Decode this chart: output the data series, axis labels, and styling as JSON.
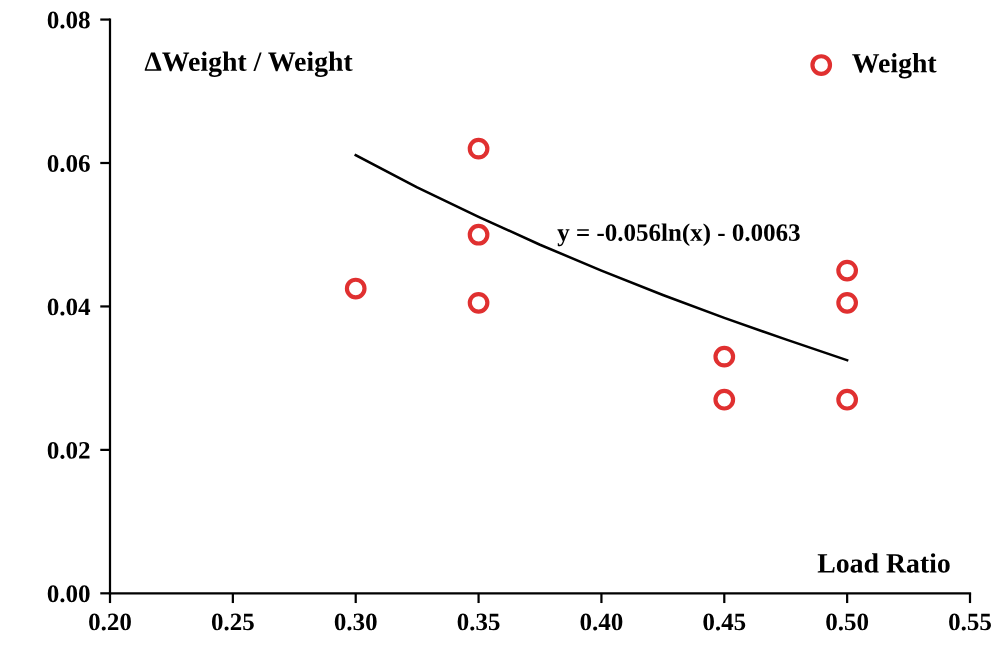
{
  "chart_data": {
    "type": "scatter",
    "xlabel": "Load Ratio",
    "ylabel": "ΔWeight / Weight",
    "xlim": [
      0.2,
      0.55
    ],
    "ylim": [
      0,
      0.08
    ],
    "xticks": [
      {
        "value": 0.2,
        "label": "0.20"
      },
      {
        "value": 0.25,
        "label": "0.25"
      },
      {
        "value": 0.3,
        "label": "0.30"
      },
      {
        "value": 0.35,
        "label": "0.35"
      },
      {
        "value": 0.4,
        "label": "0.40"
      },
      {
        "value": 0.45,
        "label": "0.45"
      },
      {
        "value": 0.5,
        "label": "0.50"
      },
      {
        "value": 0.55,
        "label": "0.55"
      }
    ],
    "yticks": [
      {
        "value": 0,
        "label": "0.00"
      },
      {
        "value": 0.02,
        "label": "0.02"
      },
      {
        "value": 0.04,
        "label": "0.04"
      },
      {
        "value": 0.06,
        "label": "0.06"
      },
      {
        "value": 0.08,
        "label": "0.08"
      }
    ],
    "grid": false,
    "legend": "top right",
    "series": [
      {
        "name": "Weight",
        "marker": "circle",
        "color": "#e03030",
        "x": [
          0.3,
          0.35,
          0.35,
          0.35,
          0.45,
          0.45,
          0.5,
          0.5,
          0.5
        ],
        "values": [
          0.0425,
          0.062,
          0.05,
          0.0405,
          0.033,
          0.027,
          0.045,
          0.0405,
          0.027
        ]
      },
      {
        "type": "line",
        "marker": "none",
        "color": "#000000",
        "x": [
          0.3,
          0.325,
          0.35,
          0.375,
          0.4,
          0.425,
          0.45,
          0.475,
          0.5
        ],
        "values": [
          0.0611,
          0.0566,
          0.0525,
          0.0486,
          0.045,
          0.0416,
          0.0384,
          0.0354,
          0.0325
        ]
      }
    ],
    "annotations": [
      "y = -0.056ln(x) - 0.0063"
    ]
  }
}
